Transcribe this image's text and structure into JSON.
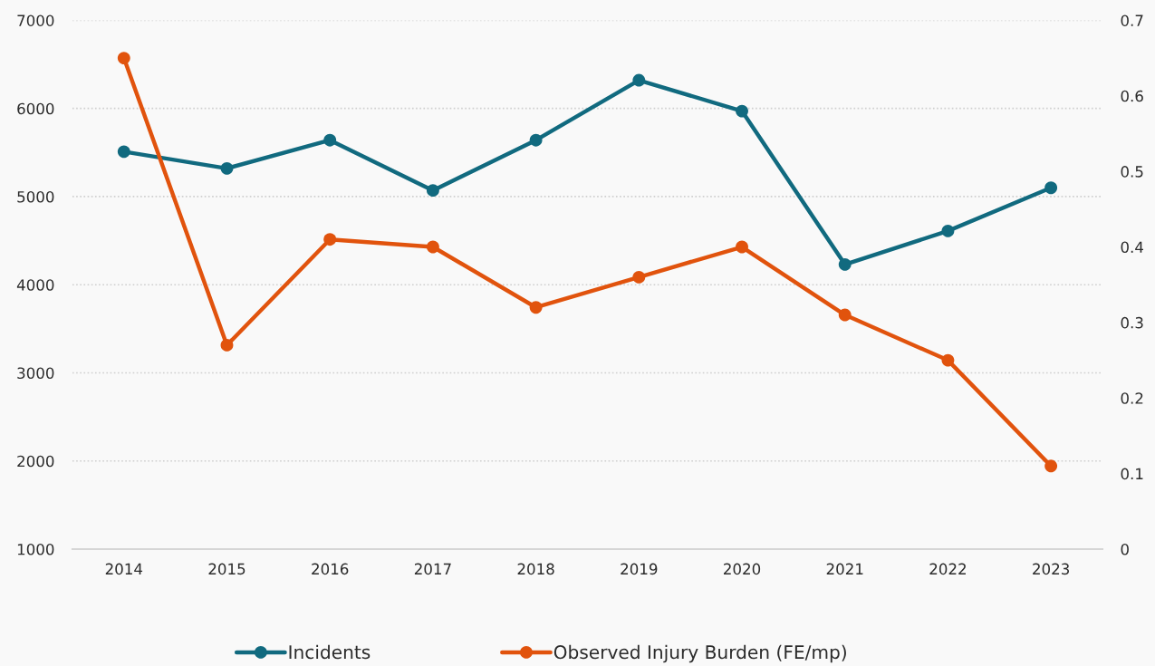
{
  "chart_data": {
    "type": "line",
    "categories": [
      "2014",
      "2015",
      "2016",
      "2017",
      "2018",
      "2019",
      "2020",
      "2021",
      "2022",
      "2023"
    ],
    "series": [
      {
        "name": "Incidents",
        "color": "#116a7f",
        "values": [
          5510,
          5320,
          5640,
          5070,
          5640,
          6320,
          5970,
          4230,
          4610,
          5100
        ]
      },
      {
        "name": "Observed Injury Burden (FE/mp)",
        "color": "#e1530d",
        "axis": "y2",
        "values": [
          0.65,
          0.27,
          0.41,
          0.4,
          0.32,
          0.36,
          0.4,
          0.31,
          0.25,
          0.11
        ]
      }
    ],
    "ylim": [
      1000,
      7000
    ],
    "yticks": [
      1000,
      2000,
      3000,
      4000,
      5000,
      6000,
      7000
    ],
    "y2lim": [
      0,
      0.7
    ],
    "y2ticks": [
      0,
      0.1,
      0.2,
      0.3,
      0.4,
      0.5,
      0.6,
      0.7
    ],
    "grid": "y",
    "legend": "bottom",
    "marker": "circle",
    "line_style": "solid"
  }
}
